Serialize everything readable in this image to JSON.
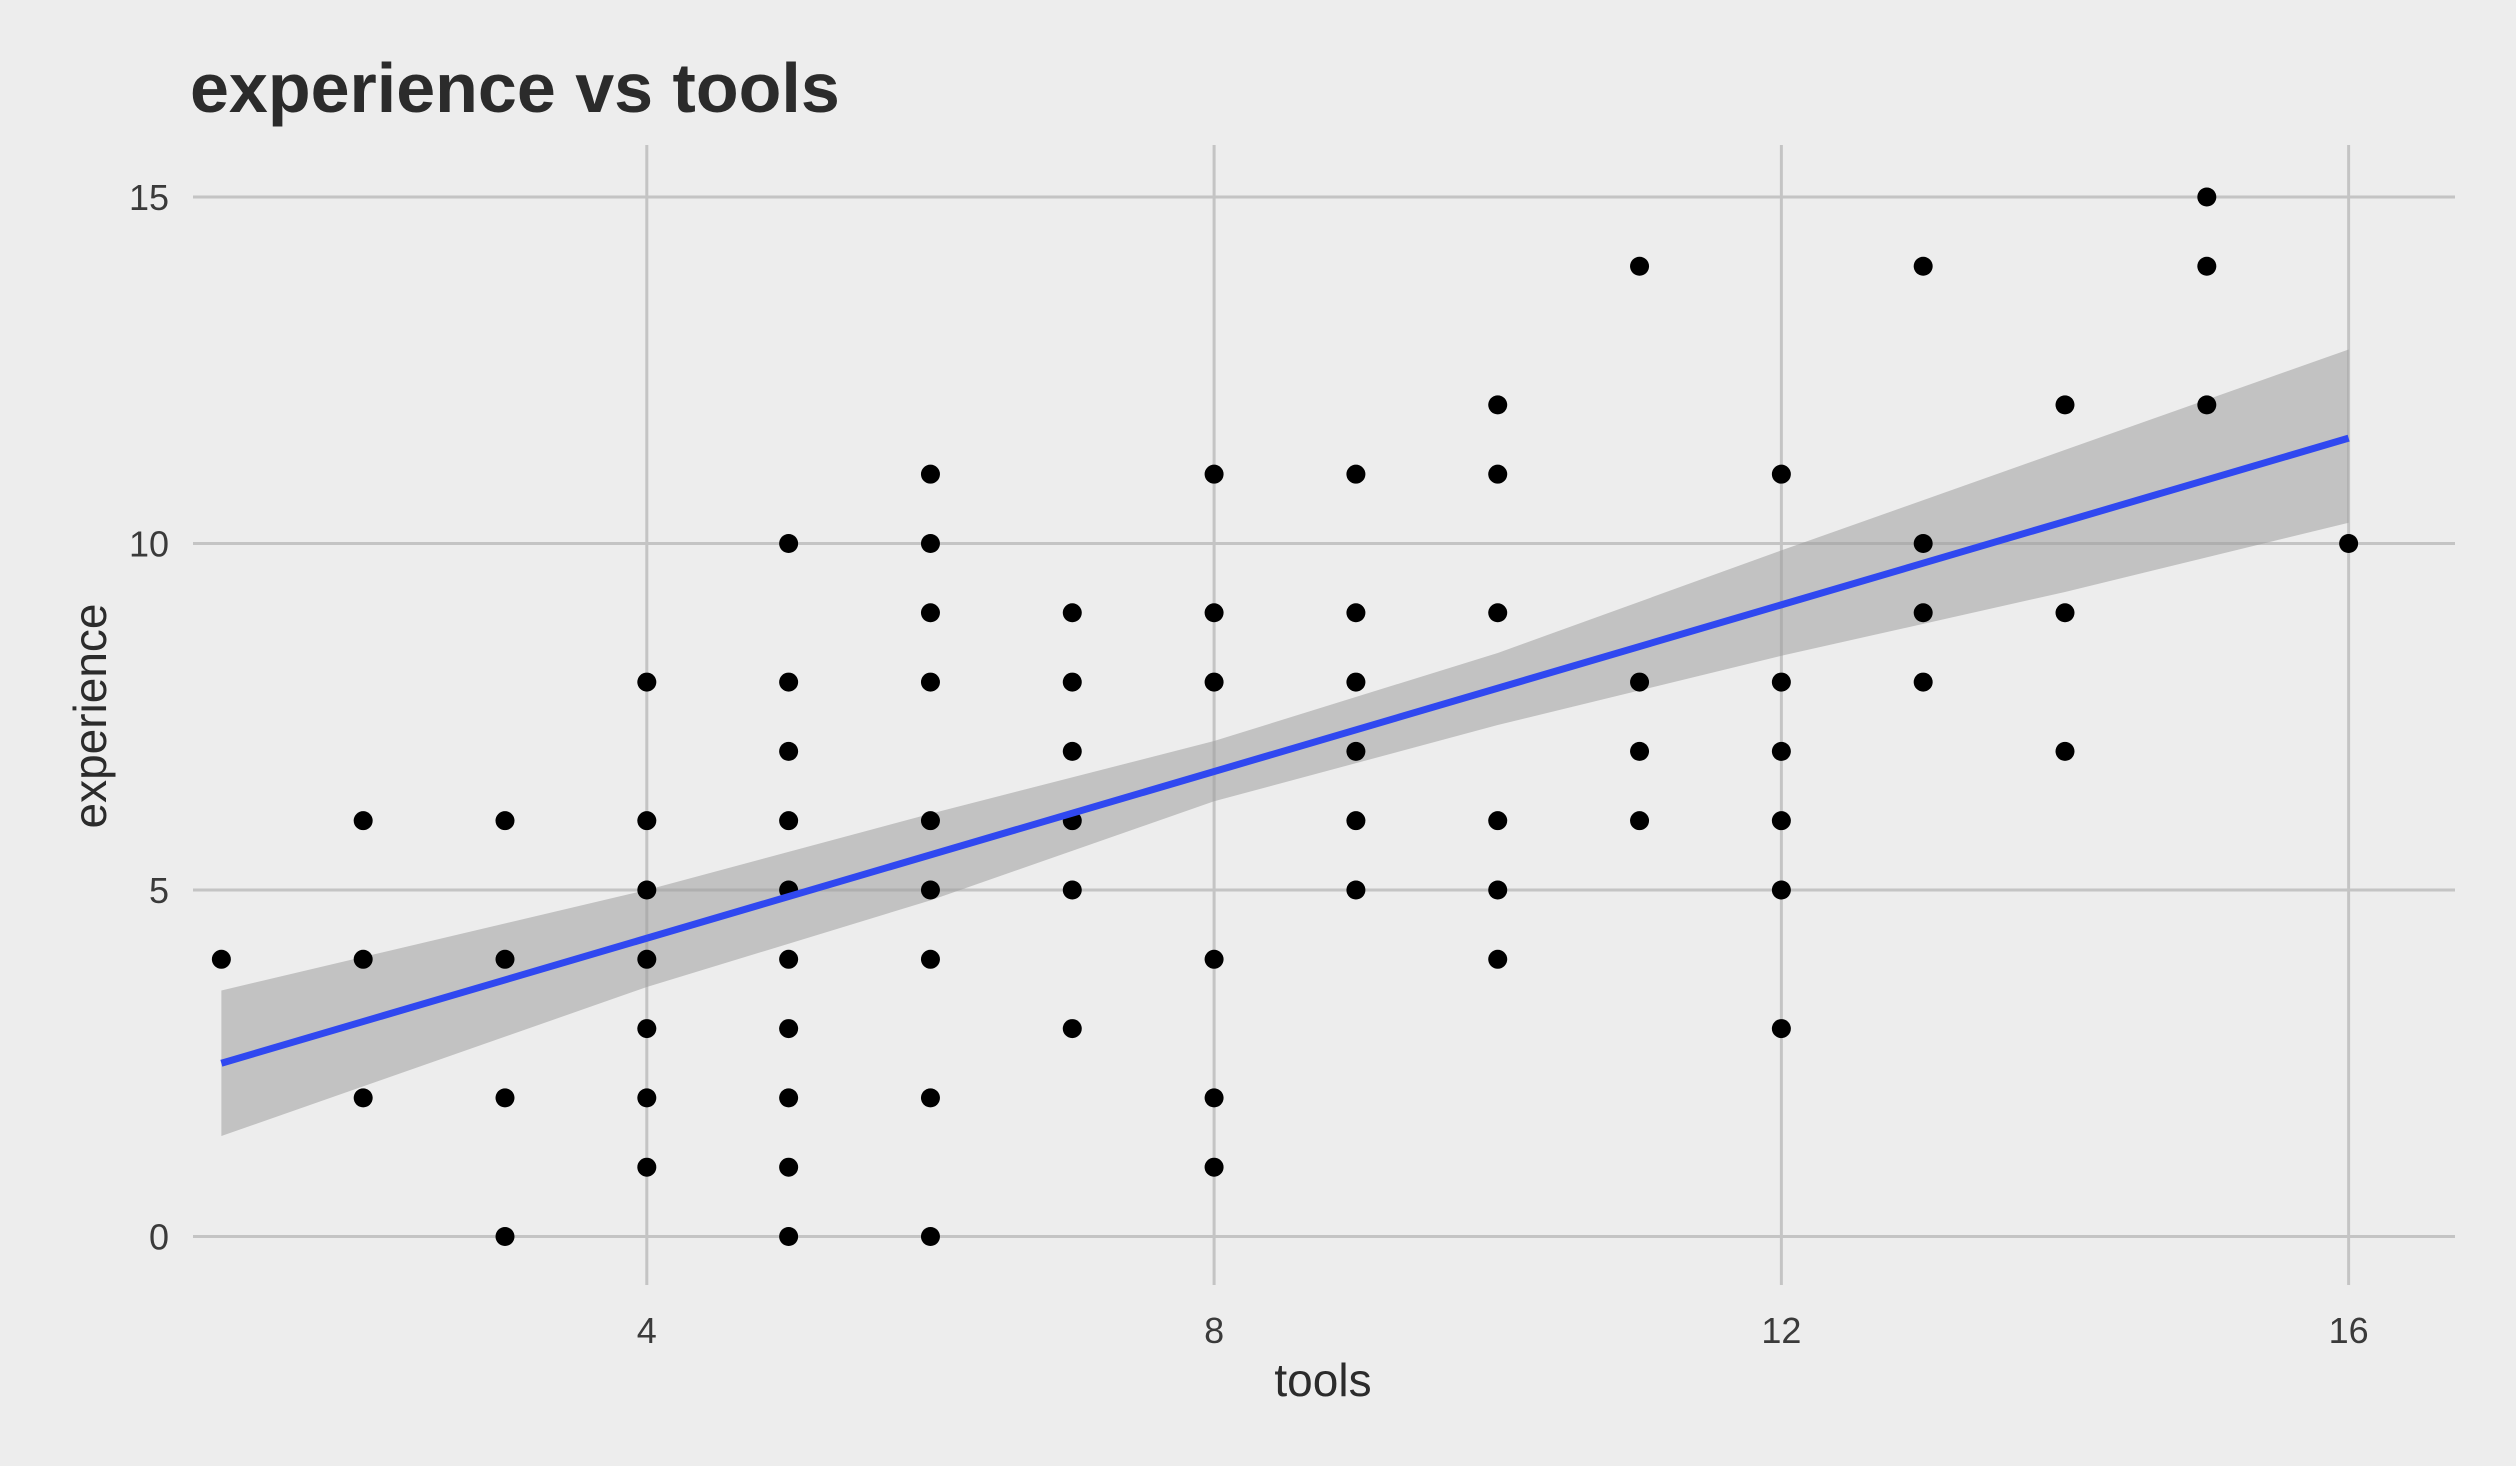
{
  "chart_data": {
    "type": "scatter",
    "title": "experience vs tools",
    "xlabel": "tools",
    "ylabel": "experience",
    "xlim": [
      0.8,
      16.75
    ],
    "ylim": [
      -0.7,
      15.75
    ],
    "x_ticks": [
      4,
      8,
      12,
      16
    ],
    "y_ticks": [
      0,
      5,
      10,
      15
    ],
    "grid": true,
    "legend": "none",
    "points": [
      {
        "x": 1,
        "y": 4
      },
      {
        "x": 2,
        "y": 6
      },
      {
        "x": 2,
        "y": 4
      },
      {
        "x": 2,
        "y": 2
      },
      {
        "x": 3,
        "y": 6
      },
      {
        "x": 3,
        "y": 4
      },
      {
        "x": 3,
        "y": 2
      },
      {
        "x": 3,
        "y": 0
      },
      {
        "x": 4,
        "y": 8
      },
      {
        "x": 4,
        "y": 6
      },
      {
        "x": 4,
        "y": 5
      },
      {
        "x": 4,
        "y": 4
      },
      {
        "x": 4,
        "y": 3
      },
      {
        "x": 4,
        "y": 2
      },
      {
        "x": 4,
        "y": 1
      },
      {
        "x": 5,
        "y": 10
      },
      {
        "x": 5,
        "y": 8
      },
      {
        "x": 5,
        "y": 7
      },
      {
        "x": 5,
        "y": 6
      },
      {
        "x": 5,
        "y": 5
      },
      {
        "x": 5,
        "y": 4
      },
      {
        "x": 5,
        "y": 3
      },
      {
        "x": 5,
        "y": 2
      },
      {
        "x": 5,
        "y": 1
      },
      {
        "x": 5,
        "y": 0
      },
      {
        "x": 6,
        "y": 11
      },
      {
        "x": 6,
        "y": 10
      },
      {
        "x": 6,
        "y": 9
      },
      {
        "x": 6,
        "y": 8
      },
      {
        "x": 6,
        "y": 6
      },
      {
        "x": 6,
        "y": 5
      },
      {
        "x": 6,
        "y": 4
      },
      {
        "x": 6,
        "y": 2
      },
      {
        "x": 6,
        "y": 0
      },
      {
        "x": 7,
        "y": 9
      },
      {
        "x": 7,
        "y": 8
      },
      {
        "x": 7,
        "y": 7
      },
      {
        "x": 7,
        "y": 6
      },
      {
        "x": 7,
        "y": 5
      },
      {
        "x": 7,
        "y": 3
      },
      {
        "x": 8,
        "y": 11
      },
      {
        "x": 8,
        "y": 9
      },
      {
        "x": 8,
        "y": 8
      },
      {
        "x": 8,
        "y": 4
      },
      {
        "x": 8,
        "y": 2
      },
      {
        "x": 8,
        "y": 1
      },
      {
        "x": 9,
        "y": 11
      },
      {
        "x": 9,
        "y": 9
      },
      {
        "x": 9,
        "y": 8
      },
      {
        "x": 9,
        "y": 7
      },
      {
        "x": 9,
        "y": 6
      },
      {
        "x": 9,
        "y": 5
      },
      {
        "x": 10,
        "y": 12
      },
      {
        "x": 10,
        "y": 11
      },
      {
        "x": 10,
        "y": 9
      },
      {
        "x": 10,
        "y": 6
      },
      {
        "x": 10,
        "y": 5
      },
      {
        "x": 10,
        "y": 4
      },
      {
        "x": 11,
        "y": 14
      },
      {
        "x": 11,
        "y": 8
      },
      {
        "x": 11,
        "y": 7
      },
      {
        "x": 11,
        "y": 6
      },
      {
        "x": 12,
        "y": 11
      },
      {
        "x": 12,
        "y": 8
      },
      {
        "x": 12,
        "y": 7
      },
      {
        "x": 12,
        "y": 6
      },
      {
        "x": 12,
        "y": 5
      },
      {
        "x": 12,
        "y": 3
      },
      {
        "x": 13,
        "y": 14
      },
      {
        "x": 13,
        "y": 10
      },
      {
        "x": 13,
        "y": 9
      },
      {
        "x": 13,
        "y": 8
      },
      {
        "x": 14,
        "y": 12
      },
      {
        "x": 14,
        "y": 9
      },
      {
        "x": 14,
        "y": 7
      },
      {
        "x": 15,
        "y": 15
      },
      {
        "x": 15,
        "y": 14
      },
      {
        "x": 15,
        "y": 12
      },
      {
        "x": 16,
        "y": 10
      }
    ],
    "fit_line": {
      "x": [
        1,
        16
      ],
      "y": [
        2.5,
        11.52
      ]
    },
    "confidence_band": {
      "x": [
        1,
        4,
        6,
        8,
        10,
        12,
        14,
        16
      ],
      "lower": [
        1.45,
        3.6,
        4.85,
        6.28,
        7.38,
        8.38,
        9.3,
        10.3
      ],
      "upper": [
        3.55,
        5.0,
        6.1,
        7.15,
        8.42,
        9.9,
        11.35,
        12.8
      ]
    },
    "colors": {
      "background": "#ededed",
      "grid": "#c4c4c4",
      "points": "#000000",
      "fit_line": "#3048f0",
      "confidence_band": "#9e9e9e"
    }
  }
}
